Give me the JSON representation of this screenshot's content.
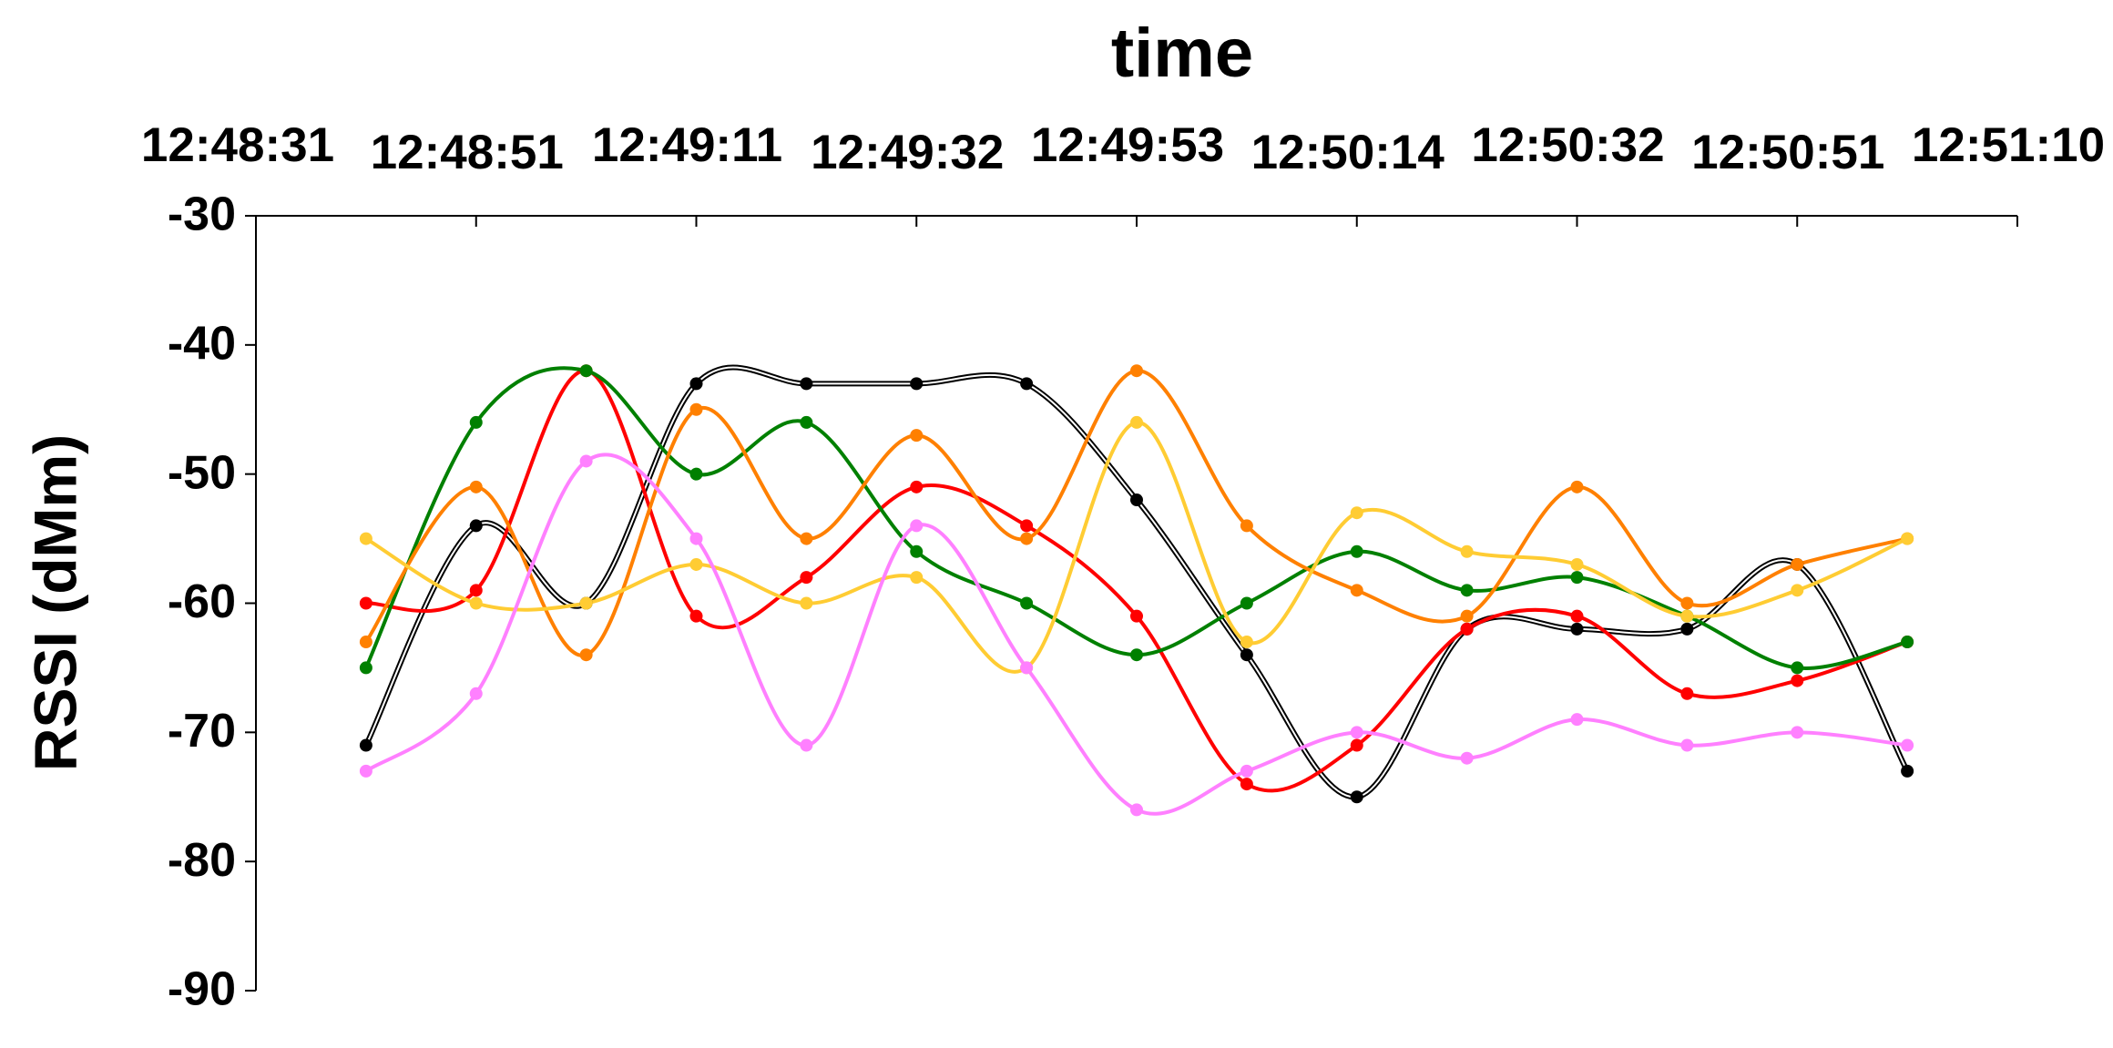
{
  "chart_data": {
    "type": "line",
    "title": "time",
    "y_label": "RSSI (dMm)",
    "categories": [
      "12:48:31",
      null,
      "12:48:51",
      null,
      "12:49:11",
      null,
      "12:49:32",
      null,
      "12:49:53",
      null,
      "12:50:14",
      null,
      "12:50:32",
      null,
      "12:50:51",
      null,
      "12:51:10"
    ],
    "ylim": [
      -90,
      -30
    ],
    "yticks": [
      -90,
      -80,
      -70,
      -60,
      -50,
      -40,
      -30
    ],
    "x_axis_position": "top",
    "smooth": true,
    "series": [
      {
        "color": "#000000",
        "double_line": true,
        "values": [
          null,
          -71,
          -54,
          -60,
          -43,
          -43,
          -43,
          -43,
          -52,
          -64,
          -75,
          -62,
          -62,
          -62,
          -57,
          -73,
          null
        ]
      },
      {
        "color": "#ff0000",
        "values": [
          null,
          -60,
          -59,
          -42,
          -61,
          -58,
          -51,
          -54,
          -61,
          -74,
          -71,
          -62,
          -61,
          -67,
          -66,
          -63,
          null
        ]
      },
      {
        "color": "#008000",
        "values": [
          null,
          -65,
          -46,
          -42,
          -50,
          -46,
          -56,
          -60,
          -64,
          -60,
          -56,
          -59,
          -58,
          -61,
          -65,
          -63,
          null
        ]
      },
      {
        "color": "#ff8000",
        "values": [
          null,
          -63,
          -51,
          -64,
          -45,
          -55,
          -47,
          -55,
          -42,
          -54,
          -59,
          -61,
          -51,
          -60,
          -57,
          -55,
          null
        ]
      },
      {
        "color": "#ffcc33",
        "values": [
          null,
          -55,
          -60,
          -60,
          -57,
          -60,
          -58,
          -65,
          -46,
          -63,
          -53,
          -56,
          -57,
          -61,
          -59,
          -55,
          null
        ]
      },
      {
        "color": "#ff80ff",
        "values": [
          null,
          -73,
          -67,
          -49,
          -55,
          -71,
          -54,
          -65,
          -76,
          -73,
          -70,
          -72,
          -69,
          -71,
          -70,
          -71,
          null
        ]
      }
    ]
  }
}
